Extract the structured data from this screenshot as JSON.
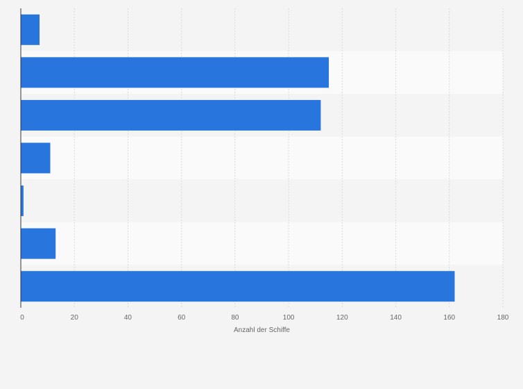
{
  "chart_data": {
    "type": "bar",
    "orientation": "horizontal",
    "title": "",
    "xlabel": "Anzahl der Schiffe",
    "ylabel": "",
    "categories": [
      "",
      "",
      "",
      "",
      "",
      "",
      ""
    ],
    "values": [
      7,
      115,
      112,
      11,
      1,
      13,
      162
    ],
    "xlim": [
      0,
      180
    ],
    "xticks": [
      0,
      20,
      40,
      60,
      80,
      100,
      120,
      140,
      160,
      180
    ],
    "grid": "vertical-dashed",
    "bar_color": "#2876dd",
    "band_colors": [
      "#f4f4f4",
      "#fafafa"
    ]
  }
}
